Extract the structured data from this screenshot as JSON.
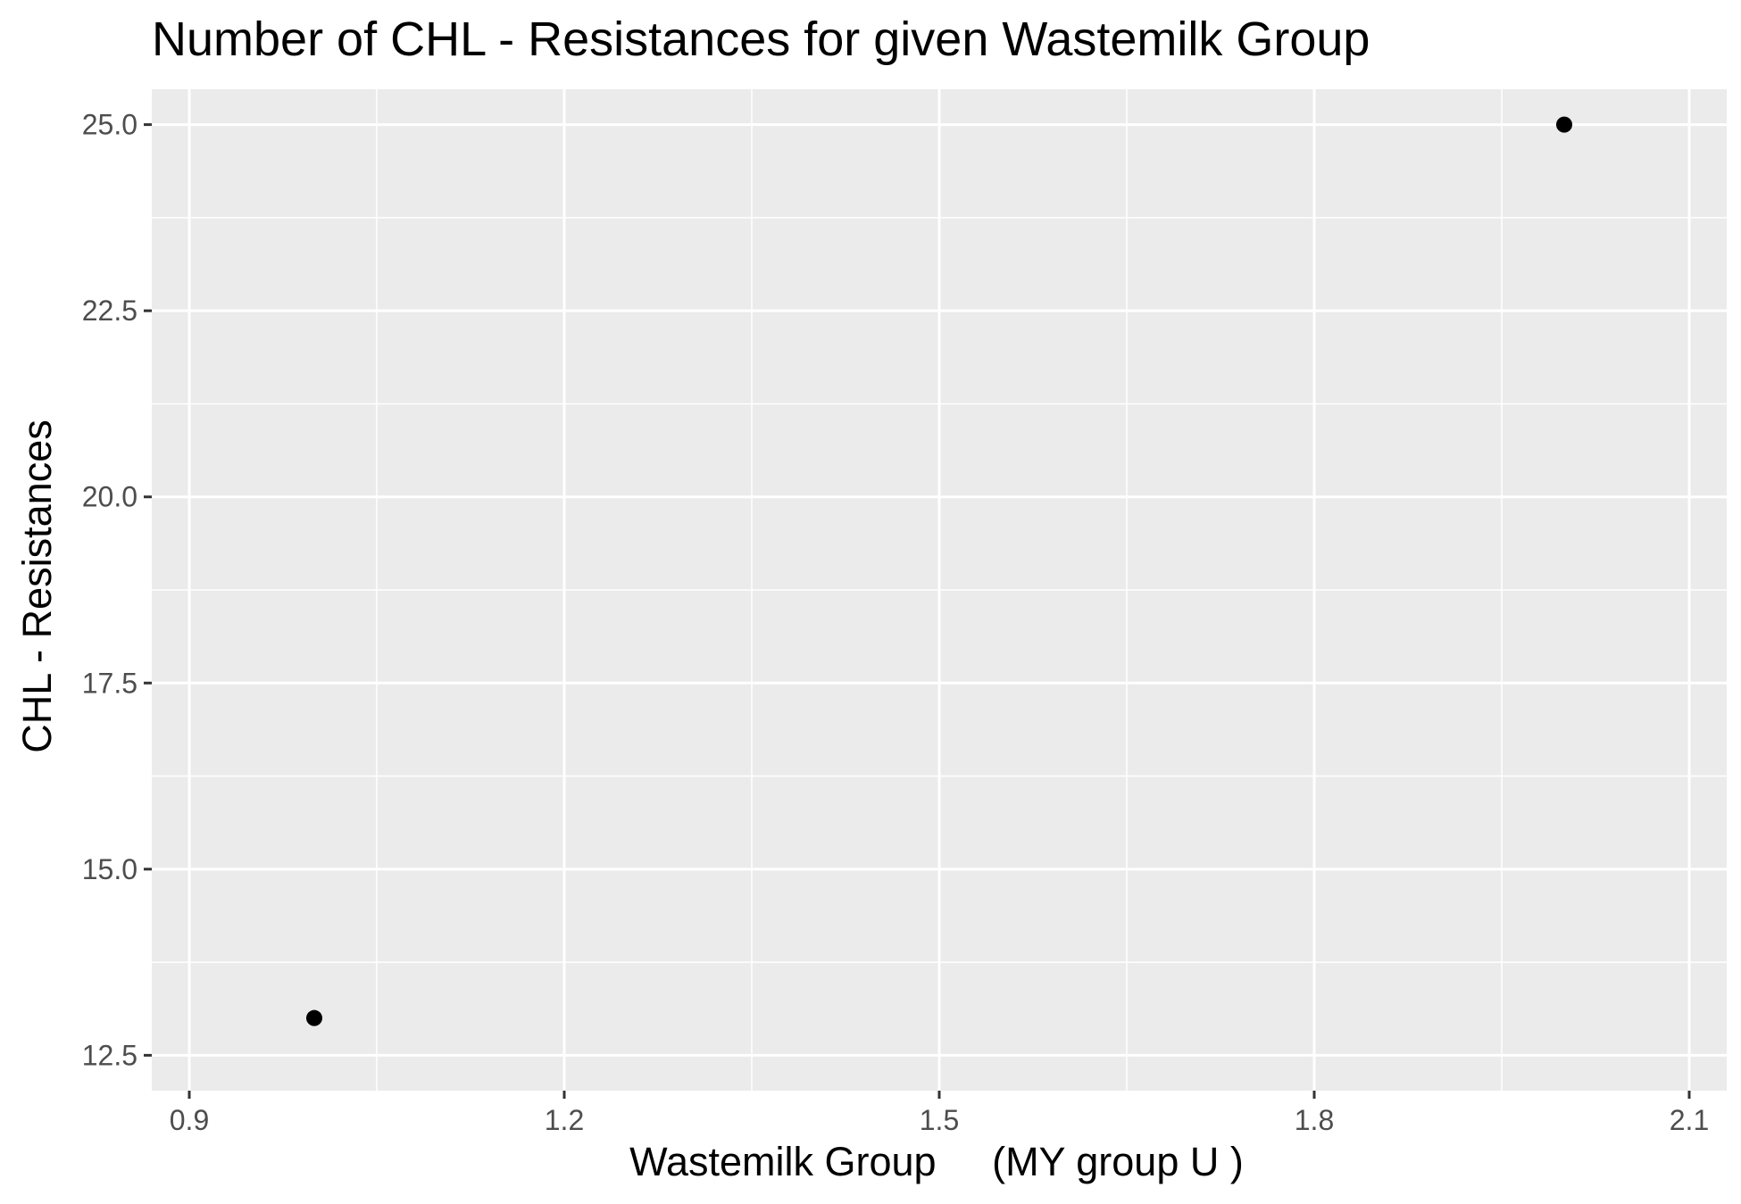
{
  "chart_data": {
    "type": "scatter",
    "title": "Number of CHL - Resistances for given Wastemilk Group",
    "xlabel": "Wastemilk Group     (MY group U )",
    "ylabel": "CHL - Resistances",
    "xlim": [
      0.9,
      2.1
    ],
    "ylim": [
      12.5,
      25.0
    ],
    "x_ticks": [
      0.9,
      1.2,
      1.5,
      1.8,
      2.1
    ],
    "x_tick_labels": [
      "0.9",
      "1.2",
      "1.5",
      "1.8",
      "2.1"
    ],
    "y_ticks": [
      12.5,
      15.0,
      17.5,
      20.0,
      22.5,
      25.0
    ],
    "y_tick_labels": [
      "12.5",
      "15.0",
      "17.5",
      "20.0",
      "22.5",
      "25.0"
    ],
    "grid": true,
    "legend": "none",
    "points": [
      {
        "x": 1.0,
        "y": 13.0
      },
      {
        "x": 2.0,
        "y": 25.0
      }
    ],
    "colors": {
      "panel_background": "#ebebeb",
      "grid_major": "#ffffff",
      "grid_minor": "#ffffff",
      "point": "#000000",
      "tick_text": "#4d4d4d",
      "tick_mark": "#333333"
    }
  }
}
